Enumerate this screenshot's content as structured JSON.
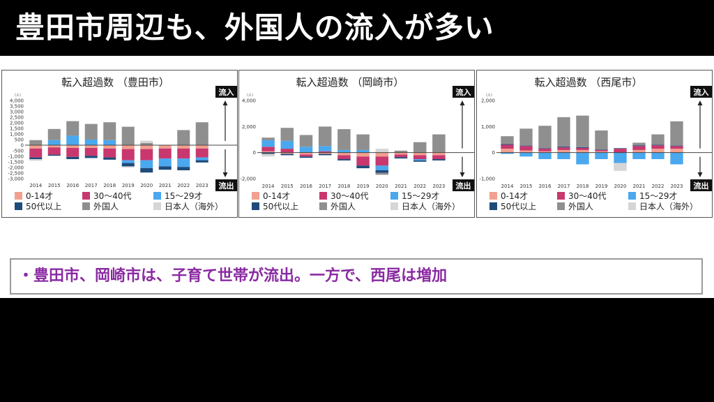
{
  "title": "豊田市周辺も、外国人の流入が多い",
  "note": "・豊田市、岡崎市は、子育て世帯が流出。一方で、西尾は増加",
  "labels": {
    "inflow": "流入",
    "outflow": "流出",
    "unit": "（人）"
  },
  "colors": {
    "age_0_14": "#f2a08f",
    "age_30_40": "#c8386e",
    "age_15_29": "#4aa8ef",
    "age_50plus": "#1e4b7a",
    "foreign": "#8f8f8f",
    "japanese_abroad": "#d6d6d6"
  },
  "chart_data": [
    {
      "type": "bar",
      "stacked": true,
      "title": "転入超過数 （豊田市）",
      "ylabel": "（人）",
      "ylim": [
        -3000,
        4000
      ],
      "yticks": [
        -3000,
        -2500,
        -2000,
        -1500,
        -1000,
        -500,
        0,
        500,
        1000,
        1500,
        2000,
        2500,
        3000,
        3500,
        4000
      ],
      "ytick_labels": [
        "-3,000",
        "-2,500",
        "-2,000",
        "-1,500",
        "-1,000",
        "-500",
        "0",
        "500",
        "1,000",
        "1,500",
        "2,000",
        "2,500",
        "3,000",
        "3,500",
        "4,000"
      ],
      "categories": [
        "2014",
        "2015",
        "2016",
        "2017",
        "2018",
        "2019",
        "2020",
        "2021",
        "2022",
        "2023"
      ],
      "legend": [
        "0-14才",
        "30〜40代",
        "15〜29才",
        "50代以上",
        "外国人",
        "日本人（海外）"
      ],
      "series": [
        {
          "name": "0-14才",
          "values": [
            -300,
            -200,
            -250,
            -250,
            -300,
            -350,
            -350,
            -300,
            -300,
            -300
          ]
        },
        {
          "name": "30〜40代",
          "values": [
            -800,
            -650,
            -800,
            -700,
            -800,
            -1000,
            -1000,
            -900,
            -900,
            -800
          ]
        },
        {
          "name": "15〜29才",
          "values": [
            0,
            450,
            850,
            500,
            450,
            -250,
            -700,
            -700,
            -750,
            -250
          ]
        },
        {
          "name": "50代以上",
          "values": [
            -150,
            -100,
            -200,
            -200,
            -200,
            -300,
            -400,
            -300,
            -300,
            -200
          ]
        },
        {
          "name": "外国人",
          "values": [
            450,
            1000,
            1300,
            1400,
            1600,
            1650,
            200,
            0,
            1350,
            2050
          ]
        },
        {
          "name": "日本人（海外）",
          "values": [
            -150,
            0,
            0,
            0,
            0,
            -100,
            200,
            0,
            0,
            0
          ]
        }
      ]
    },
    {
      "type": "bar",
      "stacked": true,
      "title": "転入超過数 （岡崎市）",
      "ylabel": "（人）",
      "ylim": [
        -2000,
        4000
      ],
      "yticks": [
        -2000,
        0,
        2000,
        4000
      ],
      "ytick_labels": [
        "-2,000",
        "0",
        "2,000",
        "4,000"
      ],
      "categories": [
        "2014",
        "2015",
        "2016",
        "2017",
        "2018",
        "2019",
        "2020",
        "2021",
        "2022",
        "2023"
      ],
      "legend": [
        "0-14才",
        "30〜40代",
        "15〜29才",
        "50代以上",
        "外国人",
        "日本人（海外）"
      ],
      "series": [
        {
          "name": "0-14才",
          "values": [
            100,
            -100,
            -150,
            -100,
            -200,
            -300,
            -300,
            -150,
            -200,
            -200
          ]
        },
        {
          "name": "30〜40代",
          "values": [
            350,
            300,
            -150,
            100,
            -300,
            -700,
            -700,
            -200,
            -300,
            -300
          ]
        },
        {
          "name": "15〜29才",
          "values": [
            500,
            600,
            450,
            400,
            200,
            200,
            -350,
            0,
            -100,
            0
          ]
        },
        {
          "name": "50代以上",
          "values": [
            -100,
            -100,
            -100,
            -100,
            -100,
            -200,
            -200,
            -100,
            -100,
            -100
          ]
        },
        {
          "name": "外国人",
          "values": [
            200,
            1000,
            900,
            1500,
            1600,
            1200,
            -150,
            150,
            800,
            1400
          ]
        },
        {
          "name": "日本人（海外）",
          "values": [
            -200,
            0,
            0,
            0,
            0,
            0,
            300,
            0,
            0,
            0
          ]
        }
      ]
    },
    {
      "type": "bar",
      "stacked": true,
      "title": "転入超過数 （西尾市）",
      "ylabel": "（人）",
      "ylim": [
        -1000,
        2000
      ],
      "yticks": [
        -1000,
        0,
        1000,
        2000
      ],
      "ytick_labels": [
        "-1,000",
        "0",
        "1,000",
        "2,000"
      ],
      "categories": [
        "2014",
        "2015",
        "2016",
        "2017",
        "2018",
        "2019",
        "2020",
        "2021",
        "2022",
        "2023"
      ],
      "legend": [
        "0-14才",
        "30〜40代",
        "15〜29才",
        "50代以上",
        "外国人",
        "日本人（海外）"
      ],
      "series": [
        {
          "name": "0-14才",
          "values": [
            150,
            80,
            50,
            100,
            100,
            50,
            0,
            100,
            150,
            150
          ]
        },
        {
          "name": "30〜40代",
          "values": [
            150,
            170,
            100,
            100,
            80,
            50,
            150,
            150,
            130,
            100
          ]
        },
        {
          "name": "15〜29才",
          "values": [
            -50,
            -150,
            -250,
            -250,
            -450,
            -250,
            -400,
            -250,
            -250,
            -450
          ]
        },
        {
          "name": "50代以上",
          "values": [
            30,
            20,
            20,
            30,
            30,
            20,
            20,
            30,
            20,
            20
          ]
        },
        {
          "name": "外国人",
          "values": [
            300,
            650,
            860,
            1130,
            1210,
            730,
            0,
            100,
            400,
            930
          ]
        },
        {
          "name": "日本人（海外）",
          "values": [
            0,
            0,
            0,
            0,
            0,
            0,
            -300,
            0,
            0,
            0
          ]
        }
      ]
    }
  ]
}
